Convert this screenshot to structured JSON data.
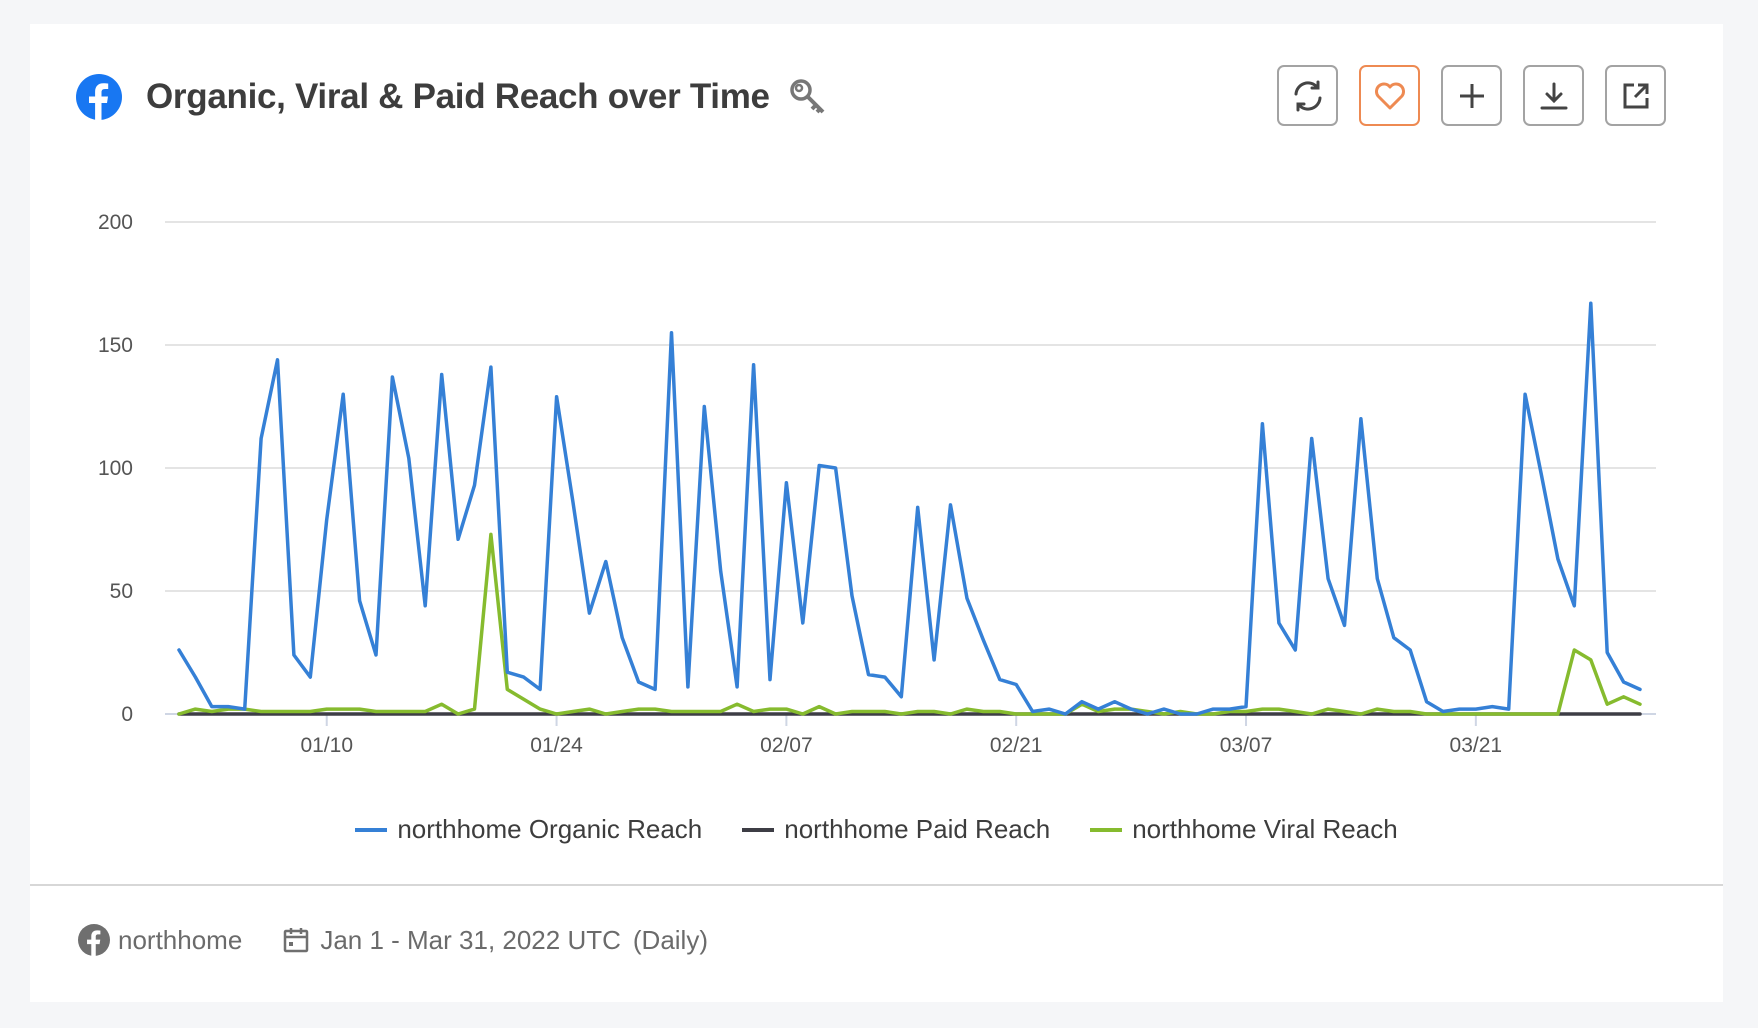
{
  "header": {
    "title": "Organic, Viral & Paid Reach over Time"
  },
  "buttons": {
    "refresh": "refresh-icon",
    "favorite": "heart-icon",
    "add": "plus-icon",
    "download": "download-icon",
    "open": "external-link-icon"
  },
  "colors": {
    "organic": "#3580d6",
    "paid": "#3d3d45",
    "viral": "#86bb2e",
    "facebook": "#1877f2",
    "favorite": "#ee8a52"
  },
  "footer": {
    "account": "northhome",
    "date_range": "Jan 1 - Mar 31, 2022 UTC",
    "granularity": "(Daily)"
  },
  "chart_data": {
    "type": "line",
    "title": "Organic, Viral & Paid Reach over Time",
    "x_start": "2022-01-01",
    "x_end": "2022-03-31",
    "x_ticks": [
      "01/10",
      "01/24",
      "02/07",
      "02/21",
      "03/07",
      "03/21"
    ],
    "x_tick_day_index": [
      9,
      23,
      37,
      51,
      65,
      79
    ],
    "y_ticks": [
      "0",
      "50",
      "100",
      "150",
      "200"
    ],
    "ylim": [
      0,
      200
    ],
    "grid": true,
    "legend_position": "bottom",
    "series": [
      {
        "name": "northhome Organic Reach",
        "color": "#3580d6",
        "values": [
          26,
          15,
          3,
          3,
          2,
          112,
          144,
          24,
          15,
          79,
          130,
          46,
          24,
          137,
          104,
          44,
          138,
          71,
          93,
          141,
          17,
          15,
          10,
          129,
          86,
          41,
          62,
          31,
          13,
          10,
          155,
          11,
          125,
          58,
          11,
          142,
          14,
          94,
          37,
          101,
          100,
          48,
          16,
          15,
          7,
          84,
          22,
          85,
          47,
          30,
          14,
          12,
          1,
          2,
          0,
          5,
          2,
          5,
          2,
          0,
          2,
          0,
          0,
          2,
          2,
          3,
          118,
          37,
          26,
          112,
          55,
          36,
          120,
          55,
          31,
          26,
          5,
          1,
          2,
          2,
          3,
          2,
          130,
          97,
          63,
          44,
          167,
          25,
          13,
          10
        ]
      },
      {
        "name": "northhome Paid Reach",
        "color": "#3d3d45",
        "values": [
          0,
          0,
          0,
          0,
          0,
          0,
          0,
          0,
          0,
          0,
          0,
          0,
          0,
          0,
          0,
          0,
          0,
          0,
          0,
          0,
          0,
          0,
          0,
          0,
          0,
          0,
          0,
          0,
          0,
          0,
          0,
          0,
          0,
          0,
          0,
          0,
          0,
          0,
          0,
          0,
          0,
          0,
          0,
          0,
          0,
          0,
          0,
          0,
          0,
          0,
          0,
          0,
          0,
          0,
          0,
          0,
          0,
          0,
          0,
          0,
          0,
          0,
          0,
          0,
          0,
          0,
          0,
          0,
          0,
          0,
          0,
          0,
          0,
          0,
          0,
          0,
          0,
          0,
          0,
          0,
          0,
          0,
          0,
          0,
          0,
          0,
          0,
          0,
          0,
          0
        ]
      },
      {
        "name": "northhome Viral Reach",
        "color": "#86bb2e",
        "values": [
          0,
          2,
          1,
          2,
          2,
          1,
          1,
          1,
          1,
          2,
          2,
          2,
          1,
          1,
          1,
          1,
          4,
          0,
          2,
          73,
          10,
          6,
          2,
          0,
          1,
          2,
          0,
          1,
          2,
          2,
          1,
          1,
          1,
          1,
          4,
          1,
          2,
          2,
          0,
          3,
          0,
          1,
          1,
          1,
          0,
          1,
          1,
          0,
          2,
          1,
          1,
          0,
          0,
          0,
          0,
          4,
          1,
          2,
          2,
          1,
          0,
          1,
          0,
          0,
          1,
          1,
          2,
          2,
          1,
          0,
          2,
          1,
          0,
          2,
          1,
          1,
          0,
          0,
          0,
          0,
          0,
          0,
          0,
          0,
          0,
          26,
          22,
          4,
          7,
          4
        ]
      }
    ]
  }
}
